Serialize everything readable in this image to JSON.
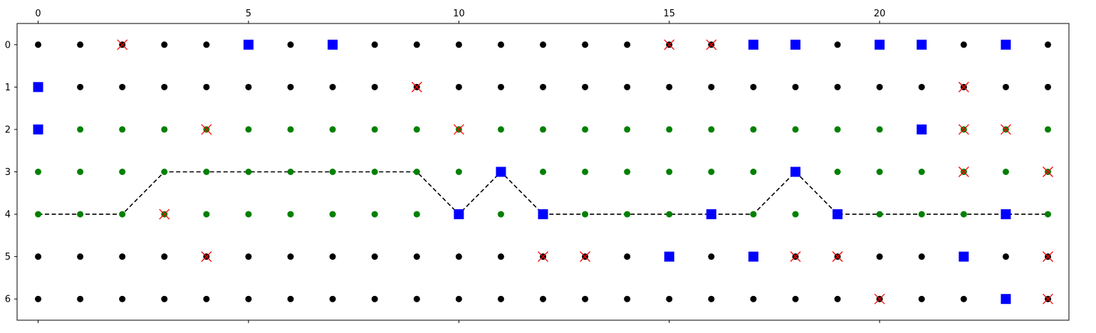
{
  "chart_data": {
    "type": "scatter",
    "title": "",
    "xlabel": "",
    "ylabel": "",
    "xlim": [
      -0.5,
      24.5
    ],
    "ylim": [
      6.5,
      -0.5
    ],
    "x_axis_position": "top",
    "y_axis_inverted": true,
    "grid": false,
    "legend": "none",
    "x_ticks": [
      0,
      5,
      10,
      15,
      20
    ],
    "y_ticks": [
      0,
      1,
      2,
      3,
      4,
      5,
      6
    ],
    "colors": {
      "black_dot": "#000000",
      "green_dot": "#008000",
      "blue_square": "#0000ff",
      "red_cross": "#ff0000",
      "path": "#000000"
    },
    "grid_columns": 25,
    "grid_rows": 7,
    "green_rows": [
      2,
      3,
      4
    ],
    "blue_squares": [
      [
        5,
        0
      ],
      [
        7,
        0
      ],
      [
        17,
        0
      ],
      [
        18,
        0
      ],
      [
        20,
        0
      ],
      [
        21,
        0
      ],
      [
        23,
        0
      ],
      [
        0,
        1
      ],
      [
        0,
        2
      ],
      [
        21,
        2
      ],
      [
        11,
        3
      ],
      [
        18,
        3
      ],
      [
        10,
        4
      ],
      [
        12,
        4
      ],
      [
        16,
        4
      ],
      [
        19,
        4
      ],
      [
        23,
        4
      ],
      [
        15,
        5
      ],
      [
        17,
        5
      ],
      [
        22,
        5
      ],
      [
        23,
        6
      ]
    ],
    "red_crosses": [
      [
        2,
        0
      ],
      [
        15,
        0
      ],
      [
        16,
        0
      ],
      [
        9,
        1
      ],
      [
        22,
        1
      ],
      [
        4,
        2
      ],
      [
        10,
        2
      ],
      [
        22,
        2
      ],
      [
        23,
        2
      ],
      [
        22,
        3
      ],
      [
        24,
        3
      ],
      [
        3,
        4
      ],
      [
        4,
        5
      ],
      [
        12,
        5
      ],
      [
        13,
        5
      ],
      [
        18,
        5
      ],
      [
        19,
        5
      ],
      [
        24,
        5
      ],
      [
        20,
        6
      ],
      [
        24,
        6
      ]
    ],
    "path": [
      [
        0,
        4
      ],
      [
        1,
        4
      ],
      [
        2,
        4
      ],
      [
        3,
        3
      ],
      [
        4,
        3
      ],
      [
        5,
        3
      ],
      [
        6,
        3
      ],
      [
        7,
        3
      ],
      [
        8,
        3
      ],
      [
        9,
        3
      ],
      [
        10,
        4
      ],
      [
        11,
        3
      ],
      [
        12,
        4
      ],
      [
        13,
        4
      ],
      [
        14,
        4
      ],
      [
        15,
        4
      ],
      [
        16,
        4
      ],
      [
        17,
        4
      ],
      [
        18,
        3
      ],
      [
        19,
        4
      ],
      [
        20,
        4
      ],
      [
        21,
        4
      ],
      [
        22,
        4
      ],
      [
        23,
        4
      ],
      [
        24,
        4
      ]
    ]
  }
}
